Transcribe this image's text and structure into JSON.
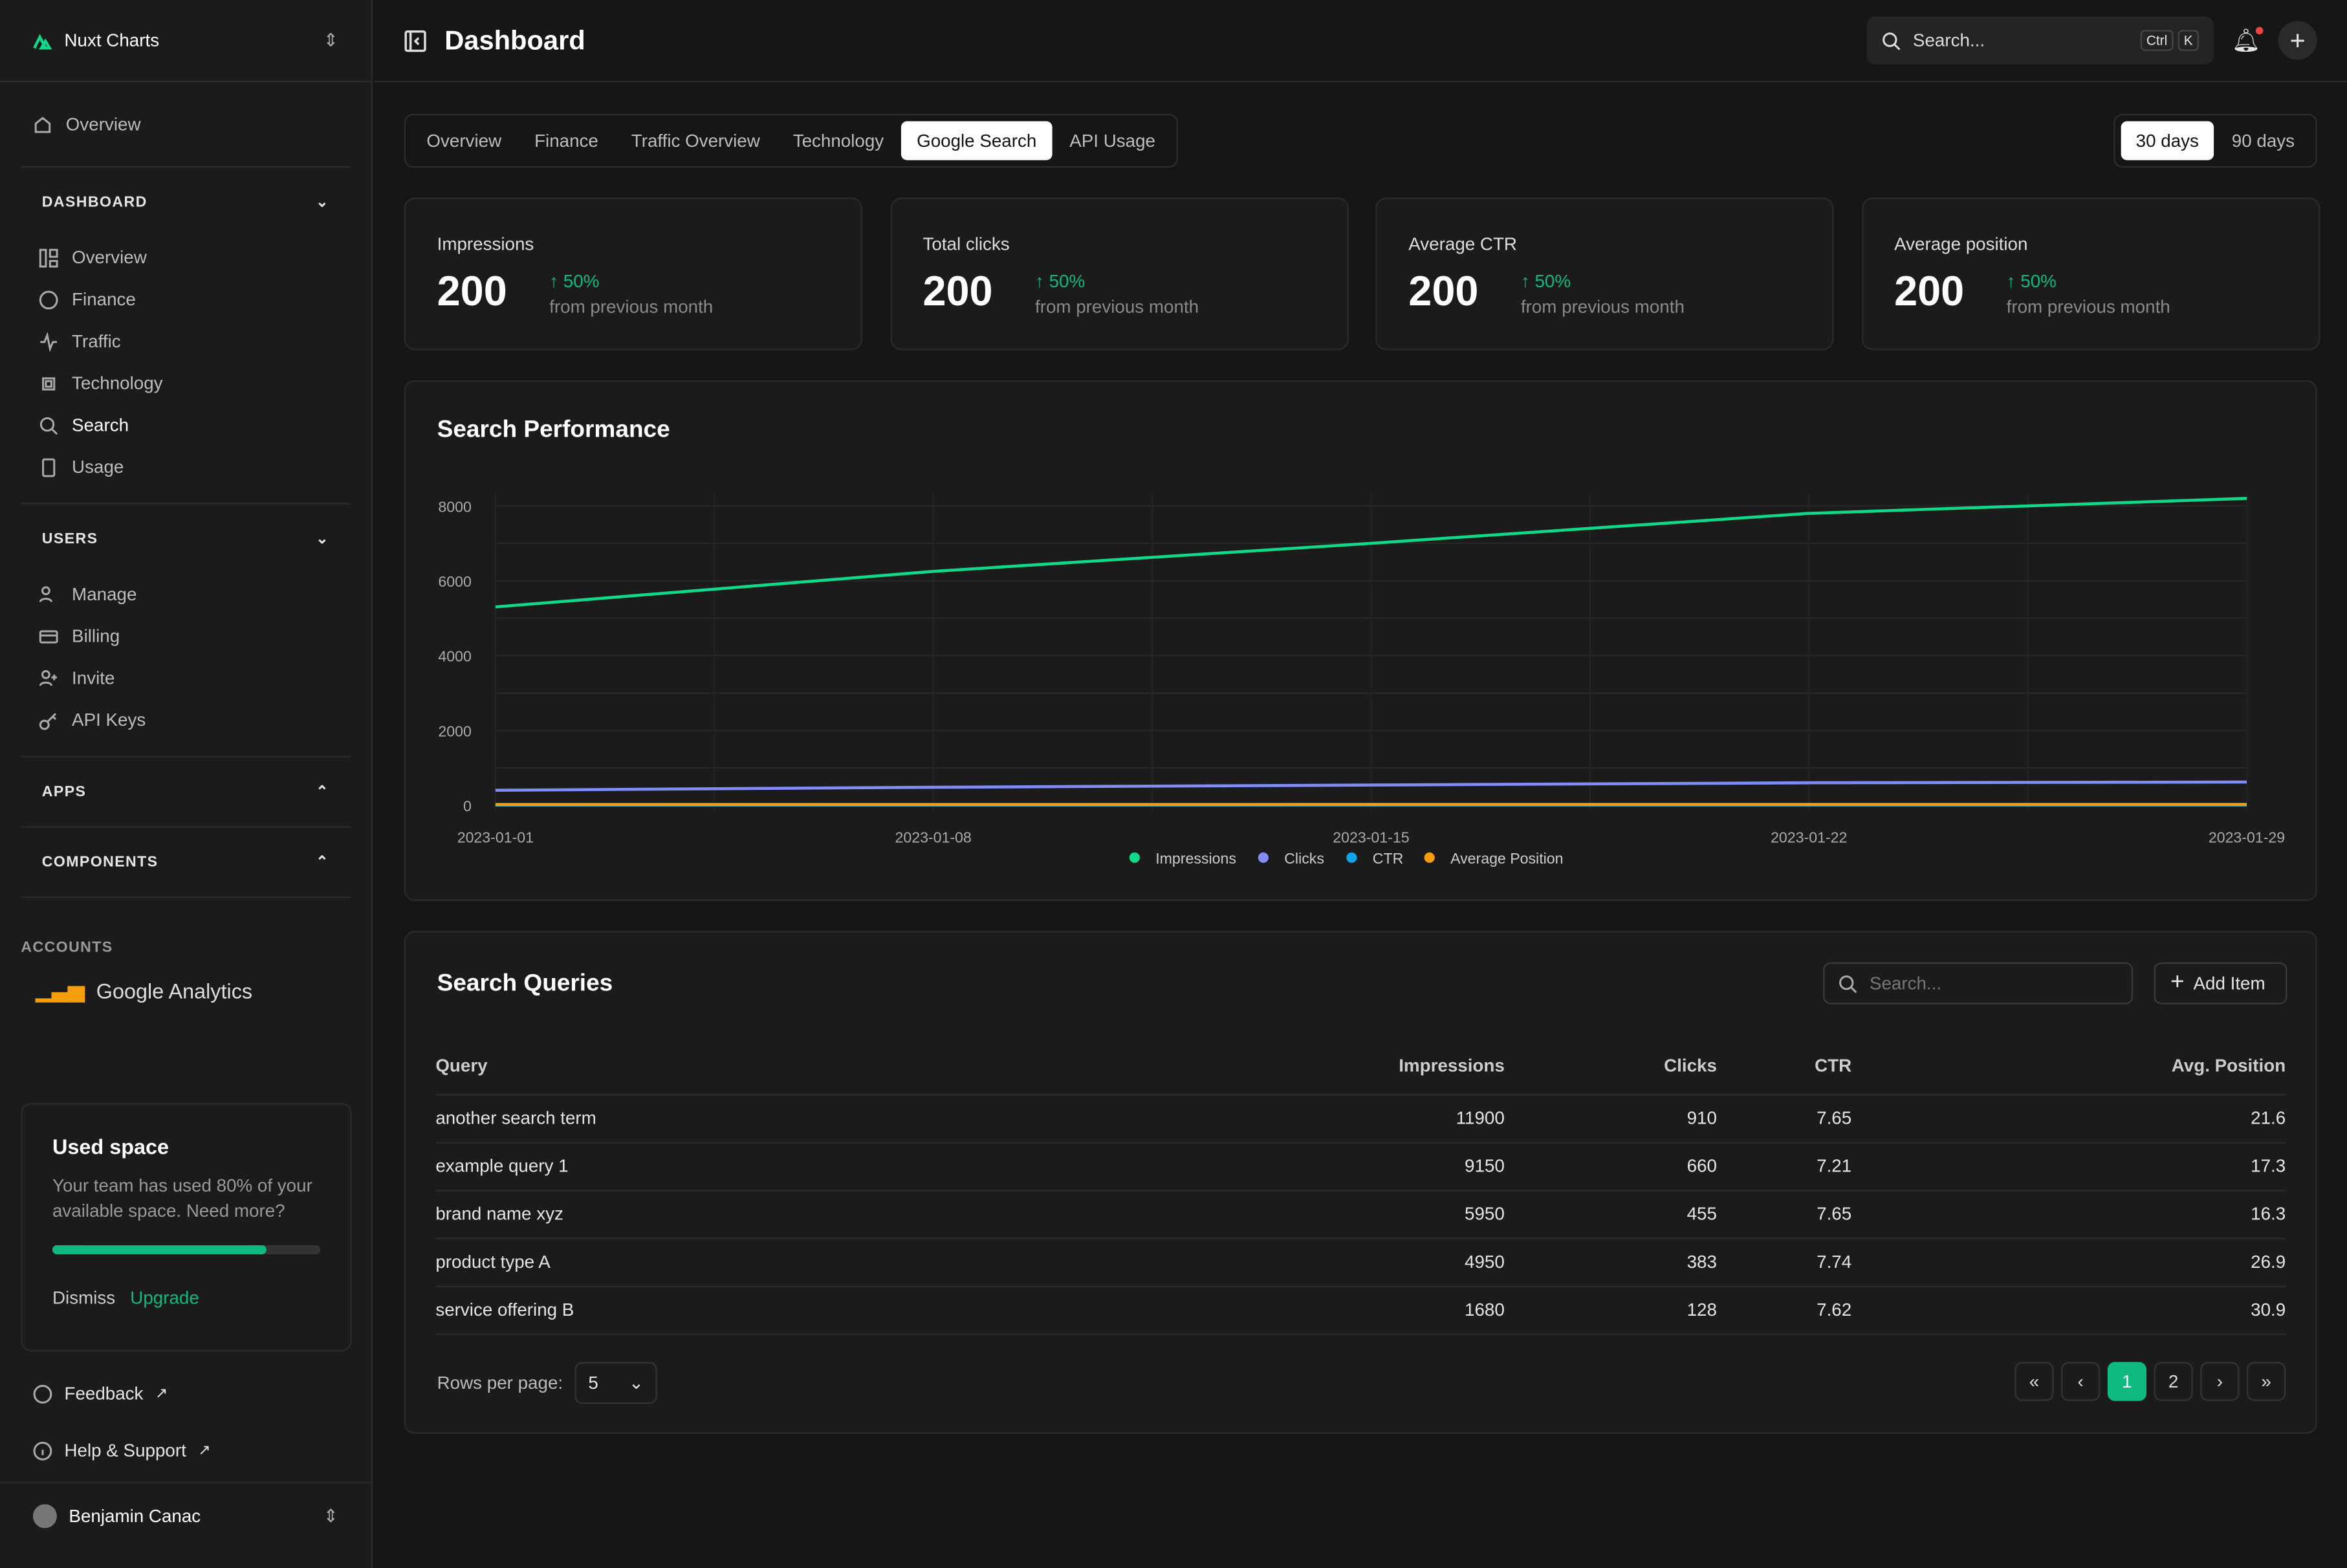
{
  "sidebar": {
    "brand": "Nuxt Charts",
    "overview": "Overview",
    "dashboard": {
      "title": "DASHBOARD",
      "items": [
        "Overview",
        "Finance",
        "Traffic",
        "Technology",
        "Search",
        "Usage"
      ]
    },
    "users": {
      "title": "USERS",
      "items": [
        "Manage",
        "Billing",
        "Invite",
        "API Keys"
      ]
    },
    "apps": "APPS",
    "components": "COMPONENTS",
    "accounts": "ACCOUNTS",
    "account": "Google Analytics",
    "used": {
      "title": "Used space",
      "text": "Your team has used 80% of your available space. Need more?",
      "progress": 80,
      "dismiss": "Dismiss",
      "upgrade": "Upgrade"
    },
    "feedback": "Feedback",
    "help": "Help & Support",
    "user": "Benjamin Canac"
  },
  "header": {
    "title": "Dashboard",
    "search": "Search...",
    "kbd": [
      "Ctrl",
      "K"
    ]
  },
  "tabs": [
    "Overview",
    "Finance",
    "Traffic Overview",
    "Technology",
    "Google Search",
    "API Usage"
  ],
  "active_tab": "Google Search",
  "ranges": [
    "30 days",
    "90 days"
  ],
  "stats": [
    {
      "label": "Impressions",
      "value": "200",
      "change": "50%",
      "sub": "from previous month"
    },
    {
      "label": "Total clicks",
      "value": "200",
      "change": "50%",
      "sub": "from previous month"
    },
    {
      "label": "Average CTR",
      "value": "200",
      "change": "50%",
      "sub": "from previous month"
    },
    {
      "label": "Average position",
      "value": "200",
      "change": "50%",
      "sub": "from previous month"
    }
  ],
  "chart_title": "Search Performance",
  "chart_data": {
    "type": "line",
    "x": [
      "2023-01-01",
      "2023-01-08",
      "2023-01-15",
      "2023-01-22",
      "2023-01-29"
    ],
    "ylim": [
      0,
      8000
    ],
    "yticks": [
      "0",
      "2000",
      "4000",
      "6000",
      "8000"
    ],
    "grid": true,
    "legend": "bottom",
    "series": [
      {
        "name": "Impressions",
        "color": "#10d98a",
        "values": [
          5300,
          6250,
          7000,
          7800,
          8200
        ]
      },
      {
        "name": "Clicks",
        "color": "#818cf8",
        "values": [
          400,
          480,
          540,
          600,
          620
        ]
      },
      {
        "name": "CTR",
        "color": "#0ea5e9",
        "values": [
          7.6,
          7.6,
          7.6,
          7.6,
          7.6
        ]
      },
      {
        "name": "Average Position",
        "color": "#f59e0b",
        "values": [
          20,
          20,
          21,
          21,
          21
        ]
      }
    ]
  },
  "queries": {
    "title": "Search Queries",
    "search": "Search...",
    "add": "Add Item",
    "columns": [
      "Query",
      "Impressions",
      "Clicks",
      "CTR",
      "Avg. Position"
    ],
    "rows": [
      [
        "another search term",
        "11900",
        "910",
        "7.65",
        "21.6"
      ],
      [
        "example query 1",
        "9150",
        "660",
        "7.21",
        "17.3"
      ],
      [
        "brand name xyz",
        "5950",
        "455",
        "7.65",
        "16.3"
      ],
      [
        "product type A",
        "4950",
        "383",
        "7.74",
        "26.9"
      ],
      [
        "service offering B",
        "1680",
        "128",
        "7.62",
        "30.9"
      ]
    ],
    "rows_label": "Rows per page:",
    "rows_value": "5",
    "pages": [
      "1",
      "2"
    ]
  }
}
